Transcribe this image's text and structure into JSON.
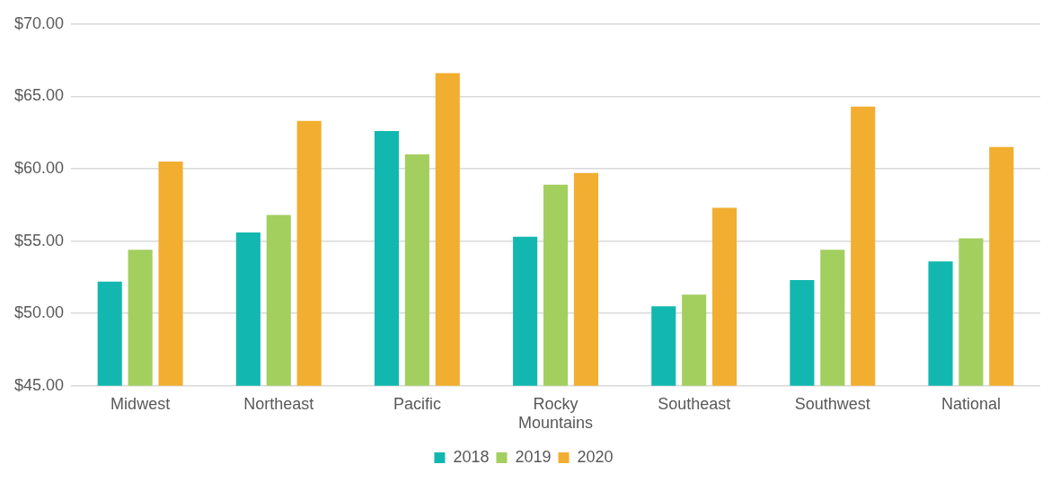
{
  "chart_data": {
    "type": "bar",
    "categories": [
      "Midwest",
      "Northeast",
      "Pacific",
      "Rocky Mountains",
      "Southeast",
      "Southwest",
      "National"
    ],
    "series": [
      {
        "name": "2018",
        "color": "#12b8b0",
        "values": [
          52.2,
          55.6,
          62.6,
          55.3,
          50.5,
          52.3,
          53.6
        ]
      },
      {
        "name": "2019",
        "color": "#a3cf5f",
        "values": [
          54.4,
          56.8,
          61.0,
          58.9,
          51.3,
          54.4,
          55.2
        ]
      },
      {
        "name": "2020",
        "color": "#f2ae30",
        "values": [
          60.5,
          63.3,
          66.6,
          59.7,
          57.3,
          64.3,
          61.5
        ]
      }
    ],
    "ylim": [
      45,
      70
    ],
    "yticks": [
      {
        "value": 45,
        "label": "$45.00"
      },
      {
        "value": 50,
        "label": "$50.00"
      },
      {
        "value": 55,
        "label": "$55.00"
      },
      {
        "value": 60,
        "label": "$60.00"
      },
      {
        "value": 65,
        "label": "$65.00"
      },
      {
        "value": 70,
        "label": "$70.00"
      }
    ],
    "grid": "y",
    "legend": "bottom"
  }
}
